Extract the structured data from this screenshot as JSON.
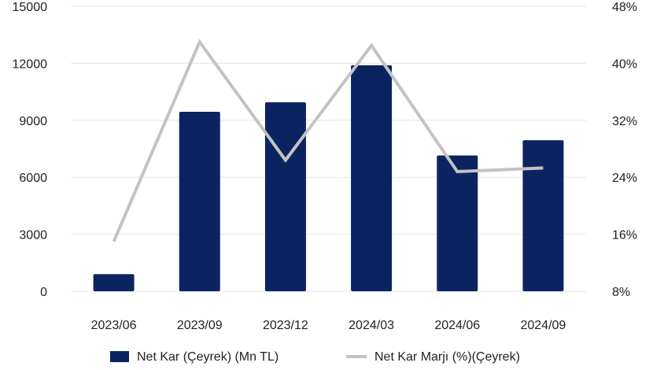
{
  "chart_data": {
    "type": "bar",
    "categories": [
      "2023/06",
      "2023/09",
      "2023/12",
      "2024/03",
      "2024/06",
      "2024/09"
    ],
    "series": [
      {
        "name": "Net Kar (Çeyrek) (Mn TL)",
        "type": "bar",
        "axis": "left",
        "color": "#0b2461",
        "values": [
          900,
          9450,
          9950,
          11900,
          7150,
          7950
        ]
      },
      {
        "name": "Net Kar Marjı (%)(Çeyrek)",
        "type": "line",
        "axis": "right",
        "color": "#c3c3c3",
        "values": [
          15.0,
          43.0,
          26.4,
          42.5,
          24.8,
          25.3
        ]
      }
    ],
    "y_left": {
      "min": 0,
      "max": 15000,
      "ticks": [
        "0",
        "3000",
        "6000",
        "9000",
        "12000",
        "15000"
      ]
    },
    "y_right": {
      "min": 8,
      "max": 48,
      "ticks": [
        "8%",
        "16%",
        "24%",
        "32%",
        "40%",
        "48%"
      ]
    },
    "grid": true,
    "legend_position": "bottom"
  }
}
